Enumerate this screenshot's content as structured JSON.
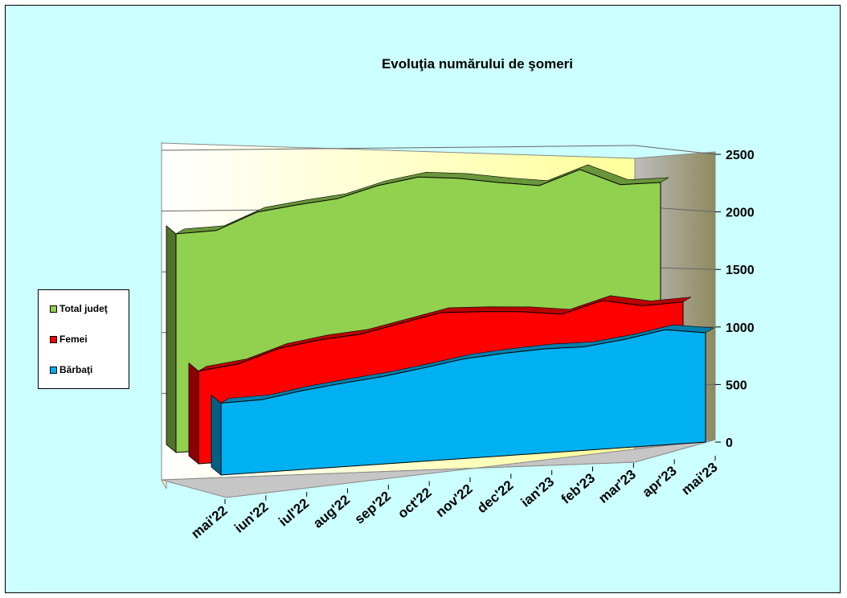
{
  "chart_data": {
    "type": "area",
    "title": "Evoluţia numărului de şomeri",
    "categories": [
      "mai'22",
      "iun'22",
      "iul'22",
      "aug'22",
      "sep'22",
      "oct'22",
      "nov'22",
      "dec'22",
      "ian'23",
      "feb'23",
      "mar'23",
      "apr'23",
      "mai'23"
    ],
    "ylim": [
      0,
      2500
    ],
    "yticks": [
      "0",
      "500",
      "1000",
      "1500",
      "2000",
      "2500"
    ],
    "grid": true,
    "legend_position": "left",
    "series": [
      {
        "name": "Total judeţ",
        "color": "#92d050",
        "values": [
          1900,
          1905,
          2040,
          2080,
          2110,
          2200,
          2250,
          2215,
          2155,
          2105,
          2220,
          2065,
          2060
        ]
      },
      {
        "name": "Femei",
        "color": "#ff0000",
        "values": [
          805,
          845,
          955,
          1005,
          1030,
          1100,
          1170,
          1155,
          1130,
          1085,
          1180,
          1110,
          1120
        ]
      },
      {
        "name": "Bărbaţi",
        "color": "#00b0f0",
        "values": [
          625,
          630,
          685,
          725,
          760,
          810,
          865,
          890,
          905,
          900,
          940,
          1000,
          950
        ]
      }
    ]
  }
}
